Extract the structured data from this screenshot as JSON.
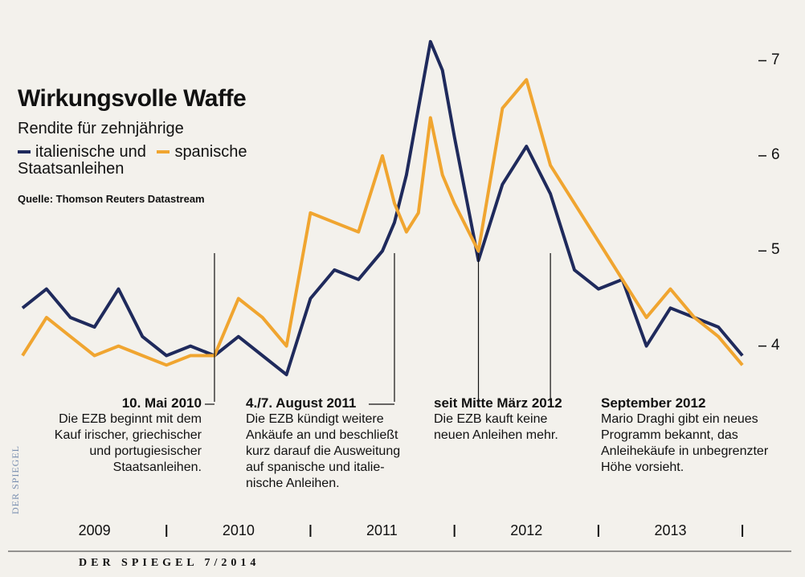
{
  "chart_data": {
    "type": "line",
    "title": "Wirkungsvolle Waffe",
    "subtitle_line1": "Rendite für zehnjährige",
    "subtitle_line3": "Staatsanleihen",
    "source": "Quelle: Thomson Reuters Datastream",
    "x": [
      "2009-01",
      "2009-03",
      "2009-05",
      "2009-07",
      "2009-09",
      "2009-11",
      "2010-01",
      "2010-03",
      "2010-05",
      "2010-07",
      "2010-09",
      "2010-11",
      "2011-01",
      "2011-03",
      "2011-05",
      "2011-07",
      "2011-08",
      "2011-09",
      "2011-10",
      "2011-11",
      "2011-12",
      "2012-01",
      "2012-03",
      "2012-05",
      "2012-07",
      "2012-09",
      "2012-11",
      "2013-01",
      "2013-03",
      "2013-05",
      "2013-07",
      "2013-09",
      "2013-11",
      "2014-01"
    ],
    "series": [
      {
        "name": "italienische und",
        "color": "#1f2a5c",
        "values": [
          4.4,
          4.6,
          4.3,
          4.2,
          4.6,
          4.1,
          3.9,
          4.0,
          3.9,
          4.1,
          3.9,
          3.7,
          4.5,
          4.8,
          4.7,
          5.0,
          5.3,
          5.8,
          6.5,
          7.2,
          6.9,
          6.2,
          4.9,
          5.7,
          6.1,
          5.6,
          4.8,
          4.6,
          4.7,
          4.0,
          4.4,
          4.3,
          4.2,
          3.9
        ]
      },
      {
        "name": "spanische",
        "color": "#f0a530",
        "values": [
          3.9,
          4.3,
          4.1,
          3.9,
          4.0,
          3.9,
          3.8,
          3.9,
          3.9,
          4.5,
          4.3,
          4.0,
          5.4,
          5.3,
          5.2,
          6.0,
          5.5,
          5.2,
          5.4,
          6.4,
          5.8,
          5.5,
          5.0,
          6.5,
          6.8,
          5.9,
          5.5,
          5.1,
          4.7,
          4.3,
          4.6,
          4.3,
          4.1,
          3.8
        ]
      }
    ],
    "ylim": [
      3.6,
      7.3
    ],
    "yticks": [
      "4",
      "5",
      "6",
      "7"
    ],
    "year_labels": [
      "2009",
      "2010",
      "2011",
      "2012",
      "2013"
    ],
    "annotations": [
      {
        "date": "2010-05",
        "head": "10. Mai 2010",
        "lines": [
          "Die EZB beginnt mit dem",
          "Kauf irischer, griechischer",
          "und portugiesischer",
          "Staatsanleihen."
        ]
      },
      {
        "date": "2011-08",
        "head": "4./7. August 2011",
        "lines": [
          "Die EZB kündigt weitere",
          "Ankäufe an und beschließt",
          "kurz darauf die Ausweitung",
          "auf spanische und italie-",
          "nische Anleihen."
        ]
      },
      {
        "date": "2012-03",
        "head": "seit Mitte März 2012",
        "lines": [
          "Die EZB kauft keine",
          "neuen Anleihen mehr."
        ]
      },
      {
        "date": "2012-09",
        "head": "September 2012",
        "lines": [
          "Mario Draghi gibt ein neues",
          "Programm bekannt, das",
          "Anleihekäufe in unbegrenzter",
          "Höhe vorsieht."
        ]
      }
    ]
  },
  "footer": "DER SPIEGEL 7/2014",
  "side_brand": "DER SPIEGEL"
}
